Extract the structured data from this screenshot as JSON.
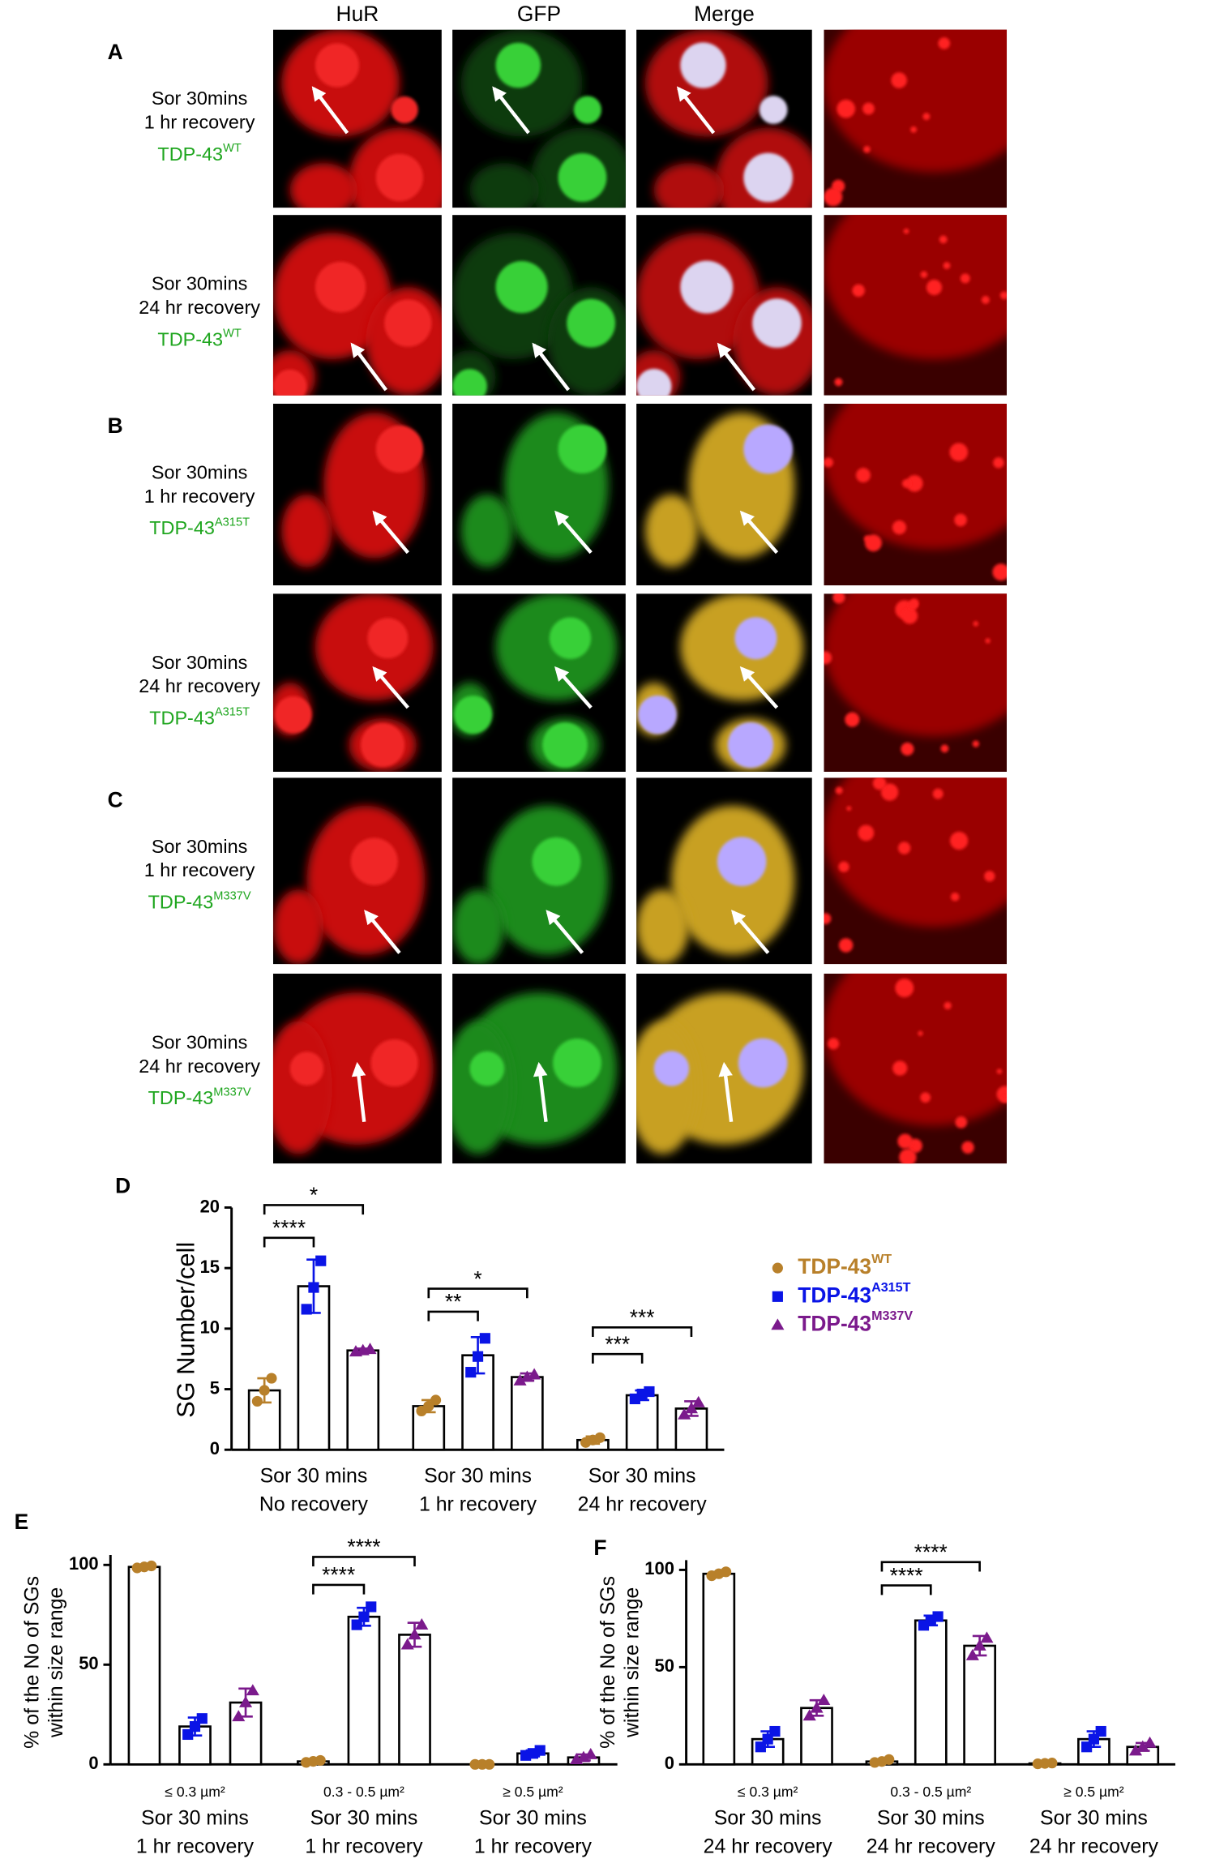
{
  "figure": {
    "column_headers": [
      "HuR",
      "GFP",
      "Merge"
    ],
    "column_header_colors": [
      "#e41a1a",
      "#1fa61f",
      "#000000"
    ],
    "panels": [
      {
        "label": "A",
        "rows": [
          {
            "lines": [
              "Sor 30mins",
              "1 hr recovery"
            ],
            "construct": "TDP-43",
            "variant": "WT"
          },
          {
            "lines": [
              "Sor 30mins",
              "24 hr recovery"
            ],
            "construct": "TDP-43",
            "variant": "WT"
          }
        ]
      },
      {
        "label": "B",
        "rows": [
          {
            "lines": [
              "Sor 30mins",
              "1 hr recovery"
            ],
            "construct": "TDP-43",
            "variant": "A315T"
          },
          {
            "lines": [
              "Sor 30mins",
              "24 hr recovery"
            ],
            "construct": "TDP-43",
            "variant": "A315T"
          }
        ]
      },
      {
        "label": "C",
        "rows": [
          {
            "lines": [
              "Sor 30mins",
              "1 hr recovery"
            ],
            "construct": "TDP-43",
            "variant": "M337V"
          },
          {
            "lines": [
              "Sor 30mins",
              "24 hr recovery"
            ],
            "construct": "TDP-43",
            "variant": "M337V"
          }
        ]
      }
    ]
  },
  "chart_data": [
    {
      "type": "bar",
      "panel_label": "D",
      "y_label": "SG Number/cell",
      "categories": [
        [
          "Sor 30 mins",
          "No recovery"
        ],
        [
          "Sor 30 mins",
          "1 hr recovery"
        ],
        [
          "Sor 30 mins",
          "24 hr recovery"
        ]
      ],
      "ylim": [
        0,
        20
      ],
      "yticks": [
        0,
        5,
        10,
        15,
        20
      ],
      "grid": false,
      "legend": "upper right",
      "series": [
        {
          "name": "TDP-43",
          "name_superscript": "WT",
          "color": "#b8802a",
          "marker": "circle",
          "values": [
            4.9,
            3.6,
            0.8
          ],
          "errors": [
            1.0,
            0.5,
            0.3
          ],
          "points": [
            [
              4.0,
              4.9,
              5.9
            ],
            [
              3.2,
              3.6,
              4.1
            ],
            [
              0.6,
              0.8,
              1.0
            ]
          ]
        },
        {
          "name": "TDP-43",
          "name_superscript": "A315T",
          "color": "#0a14e6",
          "marker": "square",
          "values": [
            13.5,
            7.8,
            4.5
          ],
          "errors": [
            2.2,
            1.5,
            0.4
          ],
          "points": [
            [
              11.6,
              13.4,
              15.6
            ],
            [
              6.4,
              7.7,
              9.2
            ],
            [
              4.2,
              4.6,
              4.8
            ]
          ]
        },
        {
          "name": "TDP-43",
          "name_superscript": "M337V",
          "color": "#7b1a8c",
          "marker": "triangle",
          "values": [
            8.2,
            6.0,
            3.4
          ],
          "errors": [
            0.15,
            0.3,
            0.6
          ],
          "points": [
            [
              8.1,
              8.2,
              8.3
            ],
            [
              5.7,
              6.0,
              6.2
            ],
            [
              2.9,
              3.4,
              3.9
            ]
          ]
        }
      ],
      "annotations": [
        {
          "label": "****",
          "group": 0,
          "from": 0,
          "to": 1,
          "y": 17.5
        },
        {
          "label": "*",
          "group": 0,
          "from": 0,
          "to": 2,
          "y": 20.2
        },
        {
          "label": "**",
          "group": 1,
          "from": 0,
          "to": 1,
          "y": 11.4
        },
        {
          "label": "*",
          "group": 1,
          "from": 0,
          "to": 2,
          "y": 13.3
        },
        {
          "label": "***",
          "group": 2,
          "from": 0,
          "to": 1,
          "y": 7.9
        },
        {
          "label": "***",
          "group": 2,
          "from": 0,
          "to": 2,
          "y": 10.1
        }
      ]
    },
    {
      "type": "bar",
      "panel_label": "E",
      "y_label": [
        "% of the No of SGs",
        "within size range"
      ],
      "size_ranges": [
        "≤ 0.3 µm²",
        "0.3 - 0.5 µm²",
        "≥ 0.5 µm²"
      ],
      "categories": [
        [
          "Sor 30 mins",
          "1 hr recovery"
        ],
        [
          "Sor 30 mins",
          "1 hr recovery"
        ],
        [
          "Sor 30 mins",
          "1 hr recovery"
        ]
      ],
      "ylim": [
        0,
        105
      ],
      "yticks": [
        0,
        50,
        100
      ],
      "grid": false,
      "series": [
        {
          "color": "#b8802a",
          "marker": "circle",
          "values": [
            99,
            1.5,
            0
          ],
          "errors": [
            0.8,
            0.8,
            0
          ],
          "points": [
            [
              98.5,
              99,
              99.5
            ],
            [
              1,
              1.5,
              2
            ],
            [
              0,
              0,
              0
            ]
          ]
        },
        {
          "color": "#0a14e6",
          "marker": "square",
          "values": [
            19,
            74,
            5.5
          ],
          "errors": [
            4.5,
            4.5,
            1.5
          ],
          "points": [
            [
              15,
              19,
              23
            ],
            [
              70,
              74,
              79
            ],
            [
              4.5,
              5.5,
              7
            ]
          ]
        },
        {
          "color": "#7b1a8c",
          "marker": "triangle",
          "values": [
            31,
            65,
            3.5
          ],
          "errors": [
            7,
            6,
            1.5
          ],
          "points": [
            [
              24,
              31,
              37
            ],
            [
              60,
              65,
              70
            ],
            [
              2.5,
              3.5,
              5
            ]
          ]
        }
      ],
      "annotations": [
        {
          "label": "****",
          "group": 1,
          "from": 0,
          "to": 1,
          "y": 90
        },
        {
          "label": "****",
          "group": 1,
          "from": 0,
          "to": 2,
          "y": 104
        }
      ]
    },
    {
      "type": "bar",
      "panel_label": "F",
      "y_label": [
        "% of the No of SGs",
        "within size range"
      ],
      "size_ranges": [
        "≤ 0.3 µm²",
        "0.3 - 0.5 µm²",
        "≥ 0.5 µm²"
      ],
      "categories": [
        [
          "Sor 30 mins",
          "24 hr recovery"
        ],
        [
          "Sor 30 mins",
          "24 hr recovery"
        ],
        [
          "Sor 30 mins",
          "24 hr recovery"
        ]
      ],
      "ylim": [
        0,
        105
      ],
      "yticks": [
        0,
        50,
        100
      ],
      "grid": false,
      "series": [
        {
          "color": "#b8802a",
          "marker": "circle",
          "values": [
            98,
            1.5,
            0.5
          ],
          "errors": [
            1,
            1,
            0.5
          ],
          "points": [
            [
              97,
              98,
              99
            ],
            [
              1,
              1.5,
              2.5
            ],
            [
              0.3,
              0.5,
              0.7
            ]
          ]
        },
        {
          "color": "#0a14e6",
          "marker": "square",
          "values": [
            13,
            74,
            13
          ],
          "errors": [
            4,
            2.5,
            4
          ],
          "points": [
            [
              9,
              13,
              17
            ],
            [
              71.5,
              74,
              76
            ],
            [
              9,
              13,
              17
            ]
          ]
        },
        {
          "color": "#7b1a8c",
          "marker": "triangle",
          "values": [
            29,
            61,
            9
          ],
          "errors": [
            4,
            5,
            2
          ],
          "points": [
            [
              25,
              29,
              33
            ],
            [
              56,
              61,
              65
            ],
            [
              7,
              9,
              11
            ]
          ]
        }
      ],
      "annotations": [
        {
          "label": "****",
          "group": 1,
          "from": 0,
          "to": 1,
          "y": 92
        },
        {
          "label": "****",
          "group": 1,
          "from": 0,
          "to": 2,
          "y": 104
        }
      ]
    }
  ]
}
